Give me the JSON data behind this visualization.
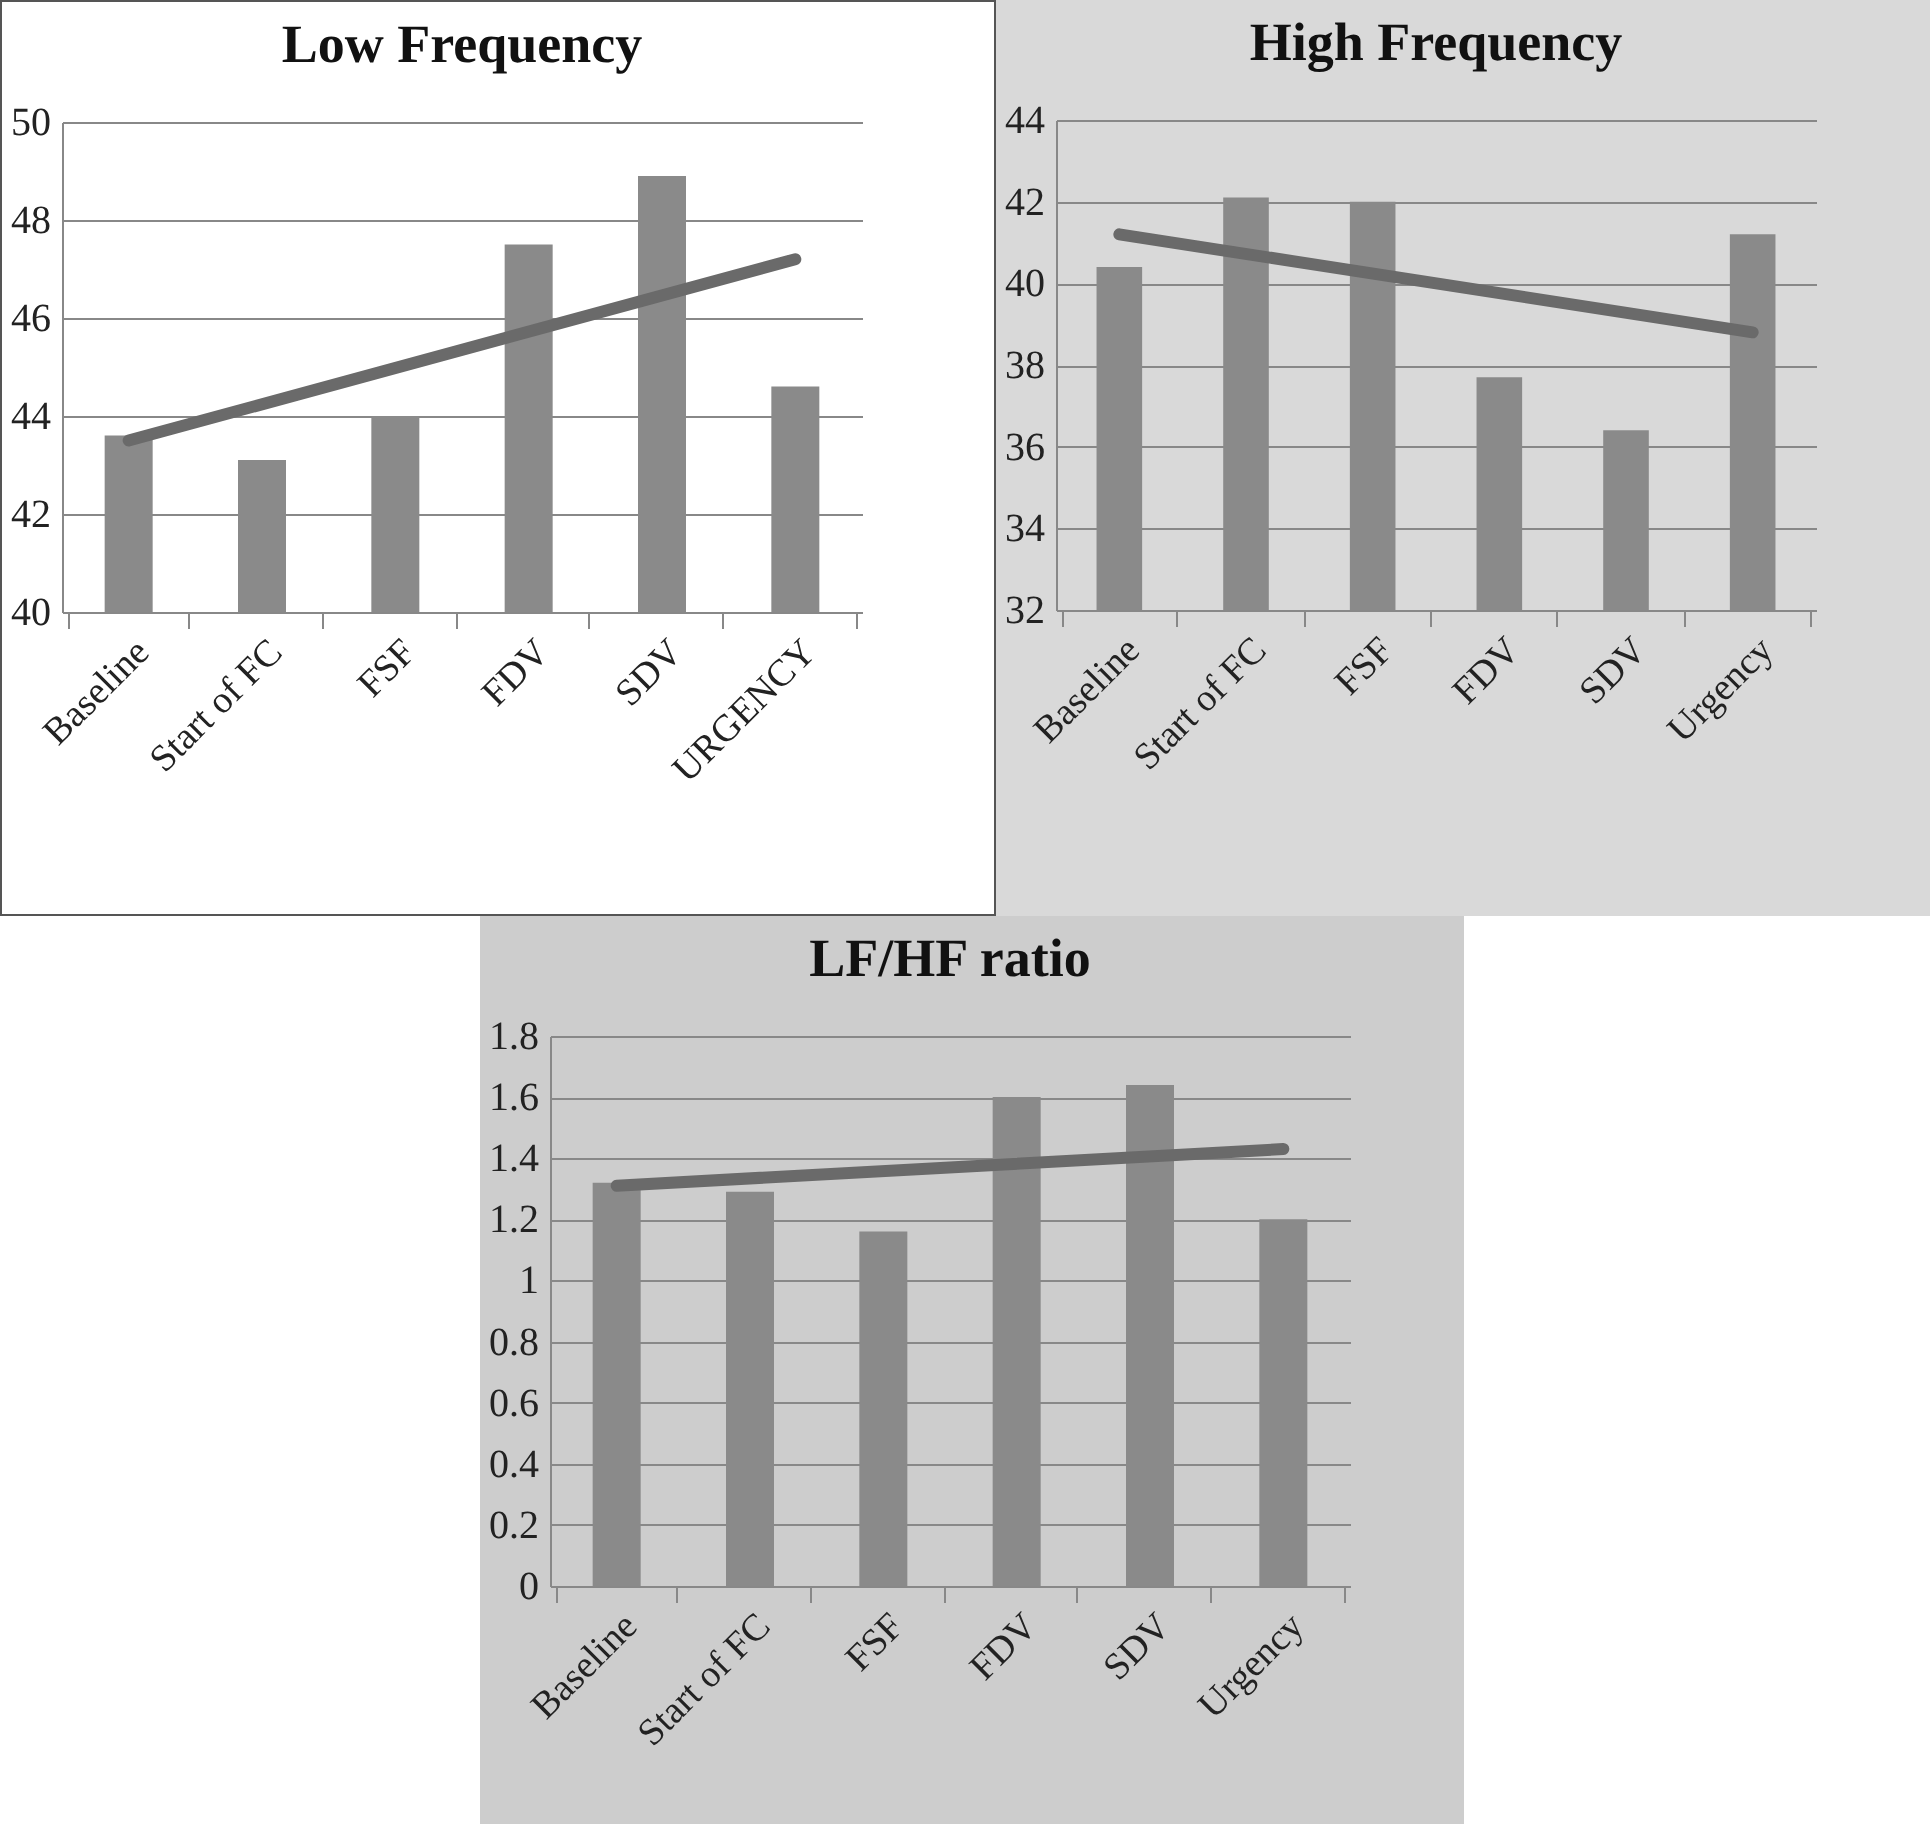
{
  "chart_data": [
    {
      "type": "bar",
      "title": "Low Frequency",
      "categories": [
        "Baseline",
        "Start of FC",
        "FSF",
        "FDV",
        "SDV",
        "URGENCY"
      ],
      "ylim": [
        40,
        50
      ],
      "yticks": [
        40,
        42,
        44,
        46,
        48,
        50
      ],
      "grid": "y",
      "series": [
        {
          "color": "#8a8a8a",
          "values": [
            43.6,
            43.1,
            44.0,
            47.5,
            48.9,
            44.6
          ]
        },
        {
          "type": "line",
          "color": "#6a6a6a",
          "x": [
            "Baseline",
            "URGENCY"
          ],
          "values": [
            43.5,
            47.2
          ]
        }
      ]
    },
    {
      "type": "bar",
      "title": "High Frequency",
      "categories": [
        "Baseline",
        "Start of FC",
        "FSF",
        "FDV",
        "SDV",
        "Urgency"
      ],
      "ylim": [
        32,
        44
      ],
      "yticks": [
        32,
        34,
        36,
        38,
        40,
        42,
        44
      ],
      "grid": "y",
      "series": [
        {
          "color": "#8a8a8a",
          "values": [
            40.4,
            42.1,
            42.0,
            37.7,
            36.4,
            41.2
          ]
        },
        {
          "type": "line",
          "color": "#6a6a6a",
          "x": [
            "Baseline",
            "Urgency"
          ],
          "values": [
            41.2,
            38.8
          ]
        }
      ]
    },
    {
      "type": "bar",
      "title": "LF/HF ratio",
      "categories": [
        "Baseline",
        "Start of FC",
        "FSF",
        "FDV",
        "SDV",
        "Urgency"
      ],
      "ylim": [
        0,
        1.8
      ],
      "yticks": [
        0,
        0.2,
        0.4,
        0.6,
        0.8,
        1,
        1.2,
        1.4,
        1.6,
        1.8
      ],
      "grid": "y",
      "series": [
        {
          "color": "#8a8a8a",
          "values": [
            1.32,
            1.29,
            1.16,
            1.6,
            1.64,
            1.2
          ]
        },
        {
          "type": "line",
          "color": "#6a6a6a",
          "x": [
            "Baseline",
            "Urgency"
          ],
          "values": [
            1.31,
            1.43
          ]
        }
      ]
    }
  ]
}
